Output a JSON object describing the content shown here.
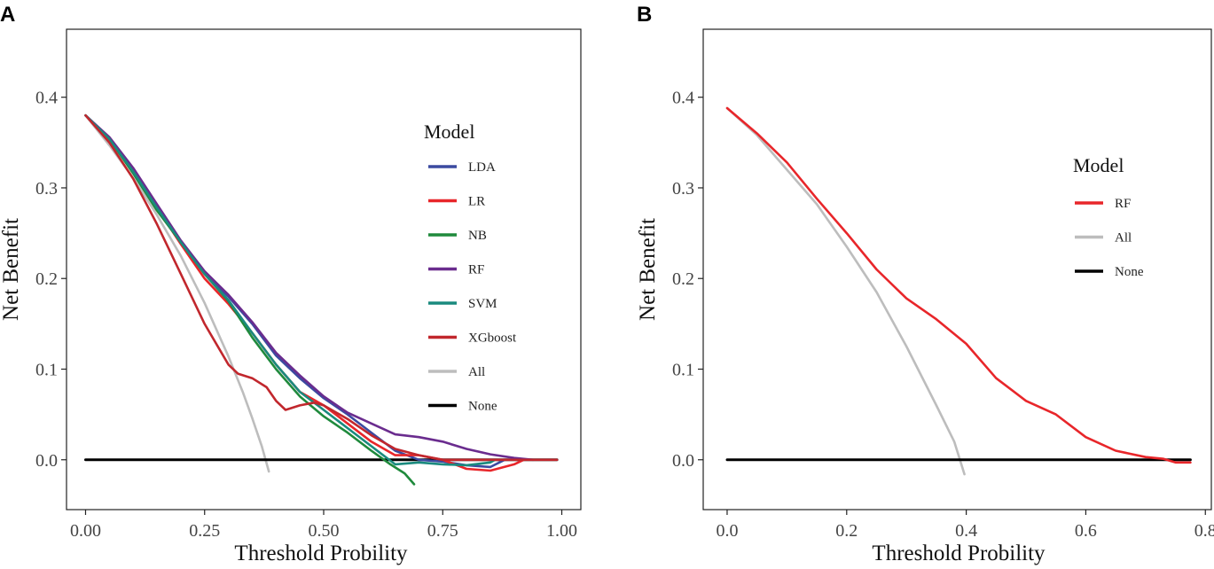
{
  "chart_data": [
    {
      "panel_label": "A",
      "type": "line",
      "xlabel": "Threshold Probility",
      "ylabel": "Net Benefit",
      "xlim": [
        -0.04,
        1.04
      ],
      "ylim": [
        -0.055,
        0.475
      ],
      "xticks": [
        "0.00",
        "0.25",
        "0.50",
        "0.75",
        "1.00"
      ],
      "yticks": [
        "0.0",
        "0.1",
        "0.2",
        "0.3",
        "0.4"
      ],
      "legend": {
        "title": "Model",
        "position": "right"
      },
      "series": [
        {
          "name": "LDA",
          "color": "#3b4aa0",
          "points": [
            [
              0,
              0.38
            ],
            [
              0.05,
              0.355
            ],
            [
              0.1,
              0.32
            ],
            [
              0.15,
              0.28
            ],
            [
              0.2,
              0.24
            ],
            [
              0.25,
              0.205
            ],
            [
              0.3,
              0.18
            ],
            [
              0.35,
              0.15
            ],
            [
              0.4,
              0.115
            ],
            [
              0.45,
              0.09
            ],
            [
              0.5,
              0.068
            ],
            [
              0.55,
              0.05
            ],
            [
              0.6,
              0.03
            ],
            [
              0.65,
              0.01
            ],
            [
              0.7,
              0.0
            ],
            [
              0.75,
              -0.002
            ],
            [
              0.8,
              -0.006
            ],
            [
              0.85,
              -0.008
            ],
            [
              0.88,
              0.0
            ]
          ]
        },
        {
          "name": "LR",
          "color": "#e8262a",
          "points": [
            [
              0,
              0.38
            ],
            [
              0.05,
              0.353
            ],
            [
              0.1,
              0.318
            ],
            [
              0.15,
              0.278
            ],
            [
              0.2,
              0.238
            ],
            [
              0.25,
              0.2
            ],
            [
              0.3,
              0.172
            ],
            [
              0.35,
              0.14
            ],
            [
              0.4,
              0.105
            ],
            [
              0.45,
              0.075
            ],
            [
              0.5,
              0.06
            ],
            [
              0.55,
              0.04
            ],
            [
              0.6,
              0.02
            ],
            [
              0.65,
              0.005
            ],
            [
              0.7,
              0.005
            ],
            [
              0.75,
              0.0
            ],
            [
              0.8,
              -0.01
            ],
            [
              0.85,
              -0.012
            ],
            [
              0.9,
              -0.005
            ],
            [
              0.92,
              0.0
            ]
          ]
        },
        {
          "name": "NB",
          "color": "#1f8a3c",
          "points": [
            [
              0,
              0.38
            ],
            [
              0.05,
              0.354
            ],
            [
              0.1,
              0.316
            ],
            [
              0.15,
              0.275
            ],
            [
              0.2,
              0.24
            ],
            [
              0.25,
              0.205
            ],
            [
              0.3,
              0.175
            ],
            [
              0.35,
              0.135
            ],
            [
              0.4,
              0.1
            ],
            [
              0.45,
              0.07
            ],
            [
              0.5,
              0.048
            ],
            [
              0.55,
              0.03
            ],
            [
              0.6,
              0.01
            ],
            [
              0.64,
              -0.005
            ],
            [
              0.67,
              -0.015
            ],
            [
              0.69,
              -0.027
            ]
          ]
        },
        {
          "name": "RF",
          "color": "#6a2c8e",
          "points": [
            [
              0,
              0.38
            ],
            [
              0.05,
              0.356
            ],
            [
              0.1,
              0.322
            ],
            [
              0.15,
              0.282
            ],
            [
              0.2,
              0.242
            ],
            [
              0.25,
              0.208
            ],
            [
              0.3,
              0.182
            ],
            [
              0.35,
              0.152
            ],
            [
              0.4,
              0.118
            ],
            [
              0.45,
              0.093
            ],
            [
              0.5,
              0.07
            ],
            [
              0.55,
              0.052
            ],
            [
              0.6,
              0.04
            ],
            [
              0.65,
              0.028
            ],
            [
              0.7,
              0.025
            ],
            [
              0.75,
              0.02
            ],
            [
              0.8,
              0.012
            ],
            [
              0.85,
              0.006
            ],
            [
              0.9,
              0.002
            ],
            [
              0.94,
              0.0
            ]
          ]
        },
        {
          "name": "SVM",
          "color": "#1a8a7e",
          "points": [
            [
              0,
              0.38
            ],
            [
              0.05,
              0.354
            ],
            [
              0.1,
              0.318
            ],
            [
              0.15,
              0.278
            ],
            [
              0.2,
              0.24
            ],
            [
              0.25,
              0.205
            ],
            [
              0.3,
              0.176
            ],
            [
              0.35,
              0.14
            ],
            [
              0.4,
              0.105
            ],
            [
              0.45,
              0.075
            ],
            [
              0.5,
              0.055
            ],
            [
              0.55,
              0.035
            ],
            [
              0.6,
              0.015
            ],
            [
              0.65,
              -0.005
            ],
            [
              0.7,
              -0.003
            ],
            [
              0.75,
              -0.005
            ],
            [
              0.8,
              -0.006
            ],
            [
              0.85,
              -0.003
            ],
            [
              0.86,
              0.0
            ]
          ]
        },
        {
          "name": "XGboost",
          "color": "#c1272d",
          "points": [
            [
              0,
              0.38
            ],
            [
              0.05,
              0.35
            ],
            [
              0.1,
              0.31
            ],
            [
              0.15,
              0.26
            ],
            [
              0.2,
              0.205
            ],
            [
              0.25,
              0.15
            ],
            [
              0.3,
              0.105
            ],
            [
              0.32,
              0.095
            ],
            [
              0.35,
              0.09
            ],
            [
              0.38,
              0.08
            ],
            [
              0.4,
              0.065
            ],
            [
              0.42,
              0.055
            ],
            [
              0.45,
              0.06
            ],
            [
              0.48,
              0.063
            ],
            [
              0.5,
              0.06
            ],
            [
              0.55,
              0.045
            ],
            [
              0.6,
              0.027
            ],
            [
              0.65,
              0.012
            ],
            [
              0.7,
              0.005
            ],
            [
              0.75,
              0.0
            ],
            [
              0.8,
              0.0
            ],
            [
              0.9,
              0.0
            ],
            [
              0.99,
              0.0
            ]
          ]
        },
        {
          "name": "All",
          "color": "#bdbdbd",
          "points": [
            [
              0,
              0.38
            ],
            [
              0.05,
              0.347
            ],
            [
              0.1,
              0.311
            ],
            [
              0.15,
              0.27
            ],
            [
              0.2,
              0.225
            ],
            [
              0.25,
              0.173
            ],
            [
              0.3,
              0.114
            ],
            [
              0.33,
              0.075
            ],
            [
              0.35,
              0.046
            ],
            [
              0.37,
              0.015
            ],
            [
              0.385,
              -0.013
            ]
          ]
        },
        {
          "name": "None",
          "color": "#000000",
          "points": [
            [
              0,
              0.0
            ],
            [
              0.99,
              0.0
            ]
          ]
        }
      ]
    },
    {
      "panel_label": "B",
      "type": "line",
      "xlabel": "Threshold Probility",
      "ylabel": "Net Benefit",
      "xlim": [
        -0.04,
        0.81
      ],
      "ylim": [
        -0.055,
        0.475
      ],
      "xticks": [
        "0.0",
        "0.2",
        "0.4",
        "0.6",
        "0.8"
      ],
      "yticks": [
        "0.0",
        "0.1",
        "0.2",
        "0.3",
        "0.4"
      ],
      "legend": {
        "title": "Model",
        "position": "right"
      },
      "series": [
        {
          "name": "RF",
          "color": "#e8262a",
          "points": [
            [
              0,
              0.388
            ],
            [
              0.05,
              0.36
            ],
            [
              0.1,
              0.328
            ],
            [
              0.15,
              0.288
            ],
            [
              0.2,
              0.25
            ],
            [
              0.25,
              0.21
            ],
            [
              0.3,
              0.178
            ],
            [
              0.35,
              0.155
            ],
            [
              0.4,
              0.128
            ],
            [
              0.45,
              0.09
            ],
            [
              0.5,
              0.065
            ],
            [
              0.55,
              0.05
            ],
            [
              0.6,
              0.025
            ],
            [
              0.65,
              0.01
            ],
            [
              0.7,
              0.003
            ],
            [
              0.73,
              0.001
            ],
            [
              0.75,
              -0.003
            ],
            [
              0.775,
              -0.003
            ]
          ]
        },
        {
          "name": "All",
          "color": "#bdbdbd",
          "points": [
            [
              0,
              0.388
            ],
            [
              0.05,
              0.358
            ],
            [
              0.1,
              0.32
            ],
            [
              0.15,
              0.282
            ],
            [
              0.2,
              0.235
            ],
            [
              0.25,
              0.185
            ],
            [
              0.3,
              0.125
            ],
            [
              0.35,
              0.06
            ],
            [
              0.38,
              0.02
            ],
            [
              0.397,
              -0.016
            ]
          ]
        },
        {
          "name": "None",
          "color": "#000000",
          "points": [
            [
              0,
              0.0
            ],
            [
              0.775,
              0.0
            ]
          ]
        }
      ]
    }
  ]
}
